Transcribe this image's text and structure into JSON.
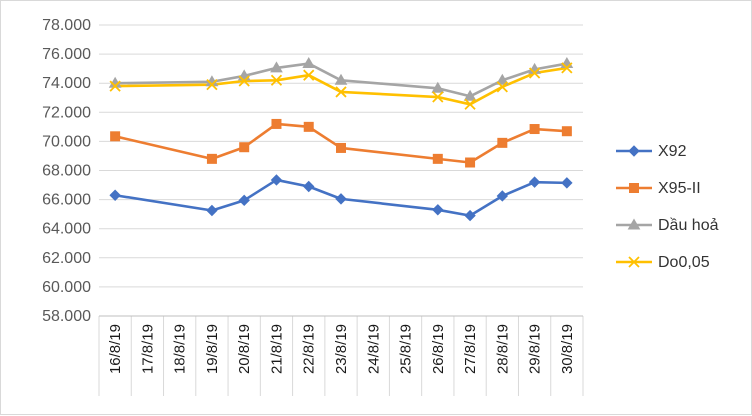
{
  "chart_data": {
    "type": "line",
    "title": "",
    "xlabel": "",
    "ylabel": "",
    "ylim": [
      58000,
      78000
    ],
    "ytick_step": 2000,
    "ytick_labels": [
      "58.000",
      "60.000",
      "62.000",
      "64.000",
      "66.000",
      "68.000",
      "70.000",
      "72.000",
      "74.000",
      "76.000",
      "78.000"
    ],
    "categories": [
      "16/8/19",
      "17/8/19",
      "18/8/19",
      "19/8/19",
      "20/8/19",
      "21/8/19",
      "22/8/19",
      "23/8/19",
      "24/8/19",
      "25/8/19",
      "26/8/19",
      "27/8/19",
      "28/8/19",
      "29/8/19",
      "30/8/19"
    ],
    "grid": true,
    "legend_position": "right",
    "series": [
      {
        "name": "X92",
        "color": "#4472C4",
        "marker": "diamond",
        "values": [
          66300,
          null,
          null,
          65250,
          65950,
          67350,
          66900,
          66050,
          null,
          null,
          65300,
          64900,
          66250,
          67200,
          67150
        ]
      },
      {
        "name": "X95-II",
        "color": "#ED7D31",
        "marker": "square",
        "values": [
          70350,
          null,
          null,
          68800,
          69600,
          71200,
          71000,
          69550,
          null,
          null,
          68800,
          68550,
          69900,
          70850,
          70700
        ]
      },
      {
        "name": "Dầu hoả",
        "color": "#A5A5A5",
        "marker": "triangle",
        "values": [
          74000,
          null,
          null,
          74100,
          74500,
          75050,
          75350,
          74200,
          null,
          null,
          73650,
          73100,
          74200,
          74950,
          75350
        ]
      },
      {
        "name": "Do0,05",
        "color": "#FFC000",
        "marker": "x",
        "values": [
          73800,
          null,
          null,
          73900,
          74150,
          74200,
          74550,
          73400,
          null,
          null,
          73050,
          72550,
          73750,
          74700,
          75050
        ]
      }
    ]
  }
}
